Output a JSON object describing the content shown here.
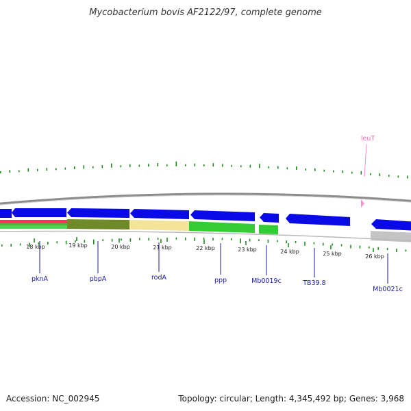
{
  "title": "Mycobacterium bovis AF2122/97, complete genome",
  "footer": {
    "accession": "Accession: NC_002945",
    "topology": "Topology: circular; Length: 4,345,492 bp; Genes: 3,968"
  },
  "colors": {
    "backbone": "#8c8c8c",
    "gene_arrow": "#0a0ae6",
    "gene_label": "#1a1aa8",
    "trna": "#ff8fc8",
    "feature_green": "#33cc33",
    "feature_olive": "#6f8a28",
    "feature_yellow": "#f3e49a",
    "feature_red": "#ff3355",
    "feature_grey": "#c4c4c4",
    "gc_ticks": "#1f8c1f"
  },
  "kbp_ticks": [
    "18 kbp",
    "19 kbp",
    "20 kbp",
    "21 kbp",
    "22 kbp",
    "23 kbp",
    "24 kbp",
    "25 kbp",
    "26 kbp"
  ],
  "gene_labels": [
    {
      "name": "pknA"
    },
    {
      "name": "pbpA"
    },
    {
      "name": "rodA"
    },
    {
      "name": "ppp"
    },
    {
      "name": "Mb0019c"
    },
    {
      "name": "TB39.8"
    },
    {
      "name": "Mb0021c"
    }
  ],
  "trna_labels": [
    {
      "name": "leuT"
    }
  ]
}
